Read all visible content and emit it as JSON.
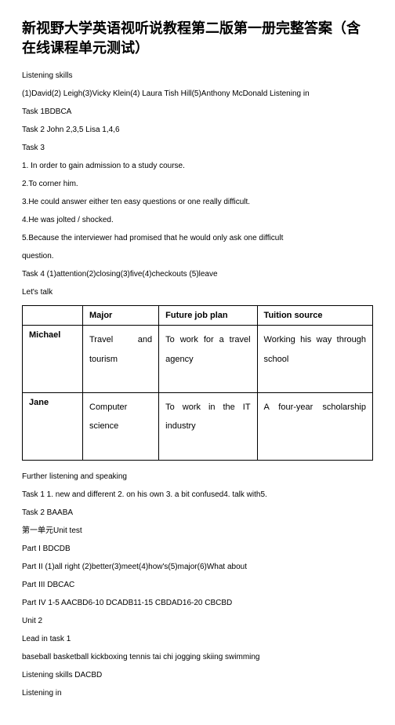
{
  "title": "新视野大学英语视听说教程第二版第一册完整答案（含在线课程单元测试）",
  "lines_before": [
    "Listening skills",
    "(1)David(2) Leigh(3)Vicky Klein(4) Laura Tish Hill(5)Anthony McDonald Listening in",
    "Task 1BDBCA",
    "Task 2 John 2,3,5 Lisa 1,4,6",
    "Task 3",
    "1. In order to gain admission to a study course.",
    "2.To corner him.",
    "3.He could answer either ten easy questions or one really difficult.",
    "4.He was jolted / shocked.",
    "5.Because the interviewer had promised that he would only ask one difficult",
    "question.",
    "Task 4 (1)attention(2)closing(3)five(4)checkouts (5)leave",
    "Let's talk"
  ],
  "table": {
    "headers": [
      "",
      "Major",
      "Future job plan",
      "Tuition source"
    ],
    "rows": [
      {
        "name": "Michael",
        "major": "Travel and tourism",
        "plan": "To work for a travel agency",
        "tuition": "Working his way through school"
      },
      {
        "name": "Jane",
        "major": "Computer science",
        "plan": "To work in the IT industry",
        "tuition": "A four-year scholarship"
      }
    ]
  },
  "lines_after": [
    "Further listening and speaking",
    "Task 1 1. new and different 2. on his own 3. a bit confused4. talk with5.",
    "Task 2 BAABA",
    "第一单元Unit test",
    "Part I BDCDB",
    "Part II (1)all right (2)better(3)meet(4)how's(5)major(6)What about",
    "Part III DBCAC",
    "Part IV 1-5 AACBD6-10 DCADB11-15 CBDAD16-20 CBCBD",
    "Unit 2",
    "Lead in task 1",
    "baseball basketball kickboxing tennis tai chi jogging skiing swimming",
    "Listening skills DACBD",
    "Listening in"
  ]
}
